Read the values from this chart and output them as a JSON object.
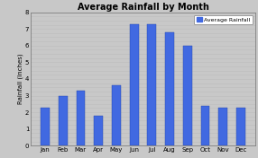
{
  "months": [
    "Jan",
    "Feb",
    "Mar",
    "Apr",
    "May",
    "Jun",
    "Jul",
    "Aug",
    "Sep",
    "Oct",
    "Nov",
    "Dec"
  ],
  "values": [
    2.3,
    3.0,
    3.3,
    1.8,
    3.6,
    7.3,
    7.3,
    6.8,
    6.0,
    2.4,
    2.3,
    2.3
  ],
  "bar_color": "#4169E1",
  "title": "Average Rainfall by Month",
  "ylabel": "Rainfall (Inches)",
  "ylim": [
    0,
    8
  ],
  "yticks": [
    0,
    1,
    2,
    3,
    4,
    5,
    6,
    7,
    8
  ],
  "legend_label": "Average Rainfall",
  "background_color": "#C8C8C8",
  "plot_bg_color": "#C8C8C8",
  "title_fontsize": 7.0,
  "axis_fontsize": 5.0,
  "tick_fontsize": 5.0,
  "grid_color": "#B0B0B0",
  "border_color": "#808080"
}
